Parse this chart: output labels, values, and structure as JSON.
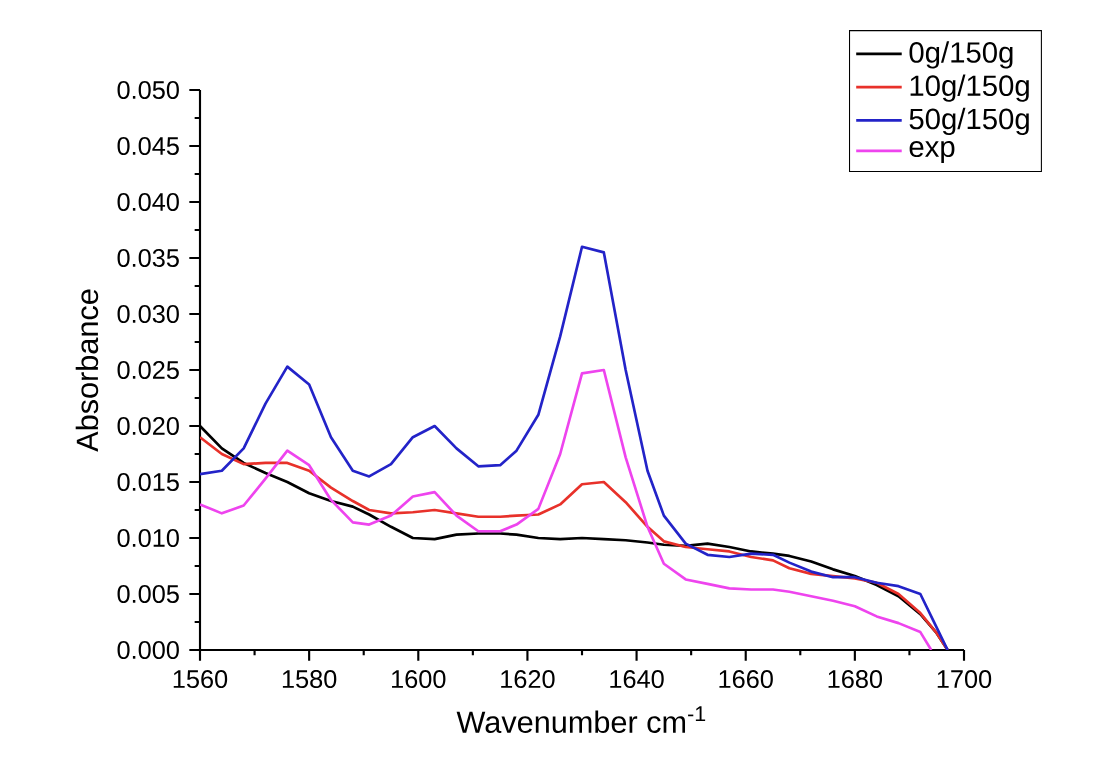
{
  "chart_data": {
    "type": "line",
    "xlabel": "Wavenumber cm$^{-1}$",
    "ylabel": "Absorbance",
    "x": [
      1560,
      1564,
      1568,
      1572,
      1576,
      1580,
      1584,
      1588,
      1591,
      1595,
      1599,
      1603,
      1607,
      1611,
      1615,
      1618,
      1622,
      1626,
      1630,
      1634,
      1638,
      1642,
      1645,
      1649,
      1653,
      1657,
      1661,
      1665,
      1668,
      1672,
      1676,
      1680,
      1684,
      1688,
      1692,
      1695,
      1697
    ],
    "series": [
      {
        "name": "0g/150g",
        "color": "#000000",
        "values": [
          0.02,
          0.018,
          0.0167,
          0.0158,
          0.015,
          0.014,
          0.0133,
          0.0128,
          0.0121,
          0.011,
          0.01,
          0.0099,
          0.0103,
          0.0104,
          0.0104,
          0.0103,
          0.01,
          0.0099,
          0.01,
          0.0099,
          0.0098,
          0.0096,
          0.0094,
          0.0093,
          0.0095,
          0.0092,
          0.0088,
          0.0086,
          0.0084,
          0.0079,
          0.0072,
          0.0066,
          0.0058,
          0.0048,
          0.0032,
          0.0015,
          0
        ]
      },
      {
        "name": "10g/150g",
        "color": "#e8312a",
        "values": [
          0.019,
          0.0175,
          0.0166,
          0.0167,
          0.0167,
          0.016,
          0.0145,
          0.0133,
          0.0125,
          0.0122,
          0.0123,
          0.0125,
          0.0122,
          0.0119,
          0.0119,
          0.012,
          0.0121,
          0.013,
          0.0148,
          0.015,
          0.0132,
          0.011,
          0.0097,
          0.0092,
          0.009,
          0.0088,
          0.0083,
          0.008,
          0.0073,
          0.0068,
          0.0066,
          0.0064,
          0.006,
          0.005,
          0.0033,
          0.0015,
          0
        ]
      },
      {
        "name": "50g/150g",
        "color": "#2323c8",
        "values": [
          0.0157,
          0.016,
          0.018,
          0.022,
          0.0253,
          0.0237,
          0.019,
          0.016,
          0.0155,
          0.0166,
          0.019,
          0.02,
          0.018,
          0.0164,
          0.0165,
          0.0178,
          0.021,
          0.028,
          0.036,
          0.0355,
          0.025,
          0.016,
          0.012,
          0.0095,
          0.0085,
          0.0083,
          0.0086,
          0.0085,
          0.0078,
          0.007,
          0.0065,
          0.0065,
          0.006,
          0.0057,
          0.005,
          0.002,
          0
        ]
      },
      {
        "name": "exp",
        "color": "#ee44ee",
        "x": [
          1560,
          1564,
          1568,
          1572,
          1576,
          1580,
          1584,
          1588,
          1591,
          1595,
          1599,
          1603,
          1607,
          1611,
          1615,
          1618,
          1622,
          1626,
          1630,
          1634,
          1638,
          1642,
          1645,
          1649,
          1653,
          1657,
          1661,
          1665,
          1668,
          1672,
          1676,
          1680,
          1684,
          1688,
          1692,
          1694
        ],
        "values": [
          0.013,
          0.0122,
          0.0129,
          0.0153,
          0.0178,
          0.0165,
          0.0134,
          0.0114,
          0.0112,
          0.012,
          0.0137,
          0.0141,
          0.012,
          0.0106,
          0.0106,
          0.0112,
          0.0126,
          0.0175,
          0.0247,
          0.025,
          0.0172,
          0.011,
          0.0077,
          0.0063,
          0.0059,
          0.0055,
          0.0054,
          0.0054,
          0.0052,
          0.0048,
          0.0044,
          0.0039,
          0.003,
          0.0024,
          0.0016,
          0
        ]
      }
    ],
    "xlim": [
      1560,
      1700
    ],
    "xticks": [
      1560,
      1580,
      1600,
      1620,
      1640,
      1660,
      1680,
      1700
    ],
    "ylim": [
      0,
      0.05
    ],
    "yticks": [
      {
        "value": 0,
        "label": "0.000"
      },
      {
        "value": 0.005,
        "label": "0.005"
      },
      {
        "value": 0.01,
        "label": "0.010"
      },
      {
        "value": 0.015,
        "label": "0.015"
      },
      {
        "value": 0.02,
        "label": "0.020"
      },
      {
        "value": 0.025,
        "label": "0.025"
      },
      {
        "value": 0.03,
        "label": "0.030"
      },
      {
        "value": 0.035,
        "label": "0.035"
      },
      {
        "value": 0.04,
        "label": "0.040"
      },
      {
        "value": 0.045,
        "label": "0.045"
      },
      {
        "value": 0.05,
        "label": "0.050"
      }
    ],
    "legend": "top right",
    "grid": false,
    "line_style": "solid",
    "marker": "none"
  }
}
